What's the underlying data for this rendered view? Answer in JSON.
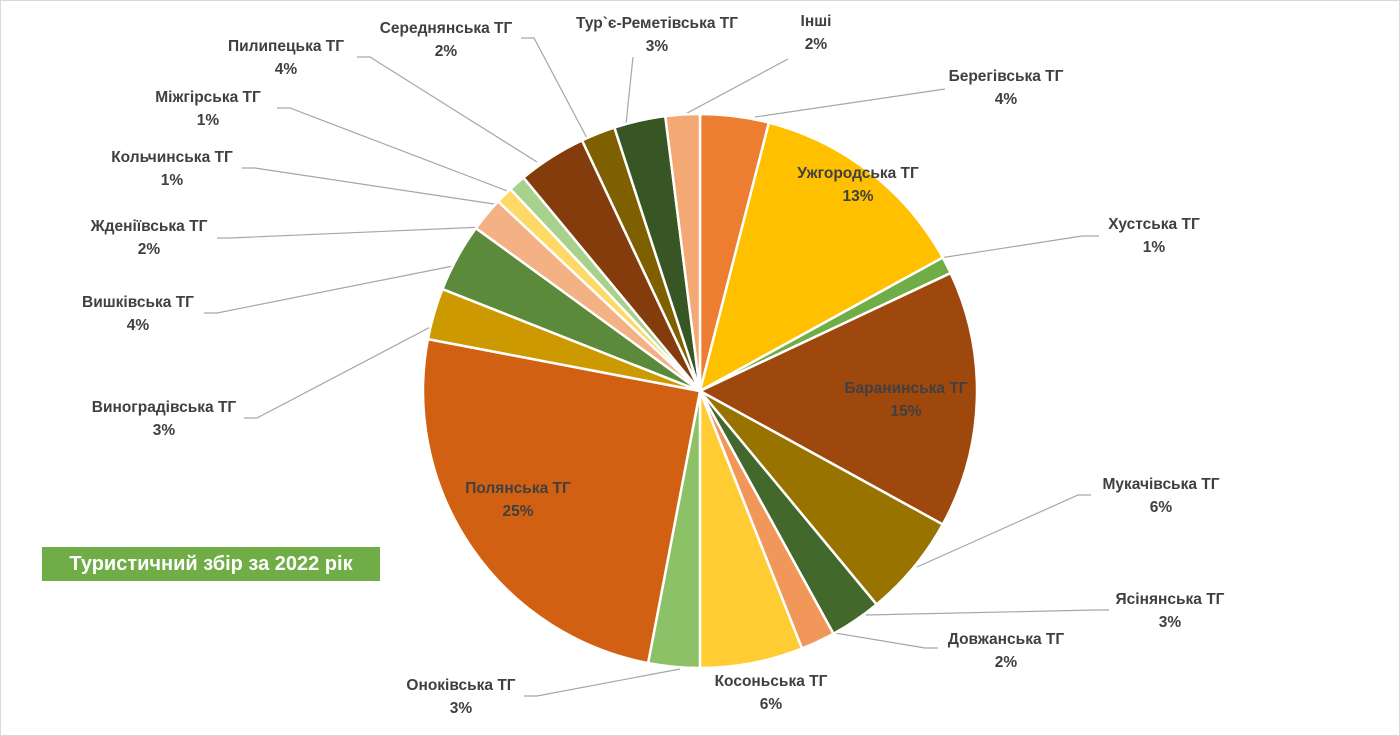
{
  "chart_data": {
    "type": "pie",
    "title": "Туристичний збір за 2022 рік",
    "slices": [
      {
        "name": "Берегівська ТГ",
        "value": 4,
        "label": "4%",
        "color": "#ed7d31",
        "text_color": "#404040",
        "inside": false
      },
      {
        "name": "Ужгородська ТГ",
        "value": 13,
        "label": "13%",
        "color": "#ffc000",
        "text_color": "#404040",
        "inside": true
      },
      {
        "name": "Хустська ТГ",
        "value": 1,
        "label": "1%",
        "color": "#70ad47",
        "text_color": "#404040",
        "inside": false
      },
      {
        "name": "Баранинська ТГ",
        "value": 15,
        "label": "15%",
        "color": "#9e480e",
        "text_color": "#ffff00",
        "inside": true
      },
      {
        "name": "Мукачівська ТГ",
        "value": 6,
        "label": "6%",
        "color": "#997300",
        "text_color": "#404040",
        "inside": false
      },
      {
        "name": "Ясінянська ТГ",
        "value": 3,
        "label": "3%",
        "color": "#43682b",
        "text_color": "#404040",
        "inside": false
      },
      {
        "name": "Довжанська ТГ",
        "value": 2,
        "label": "2%",
        "color": "#f1975a",
        "text_color": "#404040",
        "inside": false
      },
      {
        "name": "Косоньська ТГ",
        "value": 6,
        "label": "6%",
        "color": "#ffcd33",
        "text_color": "#404040",
        "inside": false
      },
      {
        "name": "Оноківська ТГ",
        "value": 3,
        "label": "3%",
        "color": "#8cc168",
        "text_color": "#404040",
        "inside": false
      },
      {
        "name": "Полянська ТГ",
        "value": 25,
        "label": "25%",
        "color": "#d26012",
        "text_color": "#ffff00",
        "inside": true
      },
      {
        "name": "Виноградівська ТГ",
        "value": 3,
        "label": "3%",
        "color": "#cc9a00",
        "text_color": "#404040",
        "inside": false
      },
      {
        "name": "Вишківська ТГ",
        "value": 4,
        "label": "4%",
        "color": "#5a8a3a",
        "text_color": "#404040",
        "inside": false
      },
      {
        "name": "Жденіївська ТГ",
        "value": 2,
        "label": "2%",
        "color": "#f4b183",
        "text_color": "#404040",
        "inside": false
      },
      {
        "name": "Кольчинська ТГ",
        "value": 1,
        "label": "1%",
        "color": "#ffd966",
        "text_color": "#404040",
        "inside": false
      },
      {
        "name": "Міжгірська ТГ",
        "value": 1,
        "label": "1%",
        "color": "#a9d18e",
        "text_color": "#404040",
        "inside": false
      },
      {
        "name": "Пилипецька ТГ",
        "value": 4,
        "label": "4%",
        "color": "#843c0c",
        "text_color": "#404040",
        "inside": false
      },
      {
        "name": "Середнянська ТГ",
        "value": 2,
        "label": "2%",
        "color": "#7f6000",
        "text_color": "#404040",
        "inside": false
      },
      {
        "name": "Тур`є-Реметівська ТГ",
        "value": 3,
        "label": "3%",
        "color": "#375623",
        "text_color": "#404040",
        "inside": false
      },
      {
        "name": "Інші",
        "value": 2,
        "label": "2%",
        "color": "#f4a873",
        "text_color": "#2e75b6",
        "inside": false
      }
    ]
  }
}
